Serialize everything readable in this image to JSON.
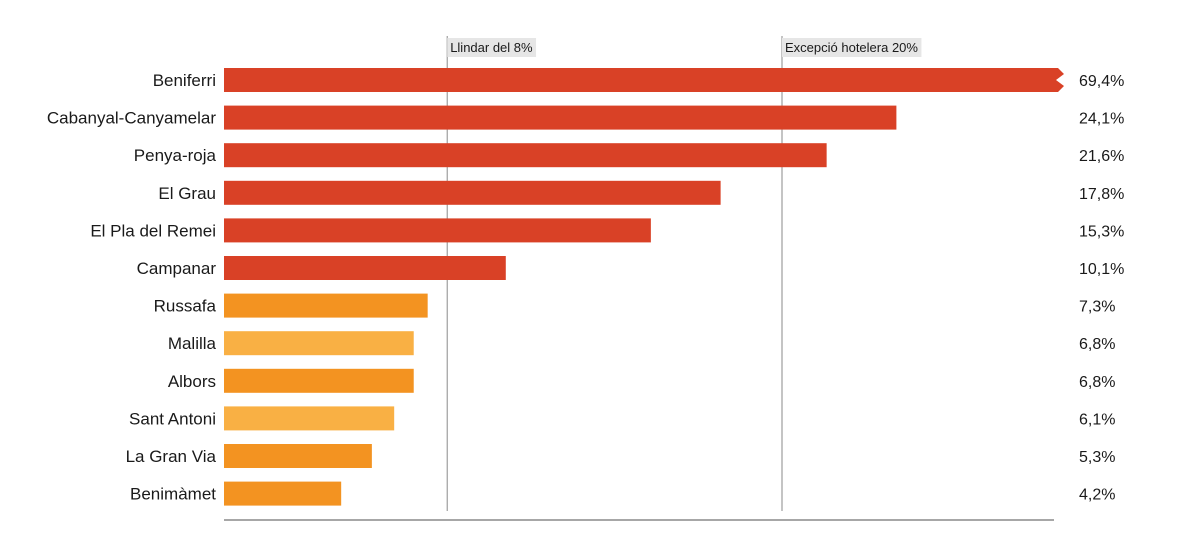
{
  "chart_data": {
    "type": "bar",
    "orientation": "horizontal",
    "categories": [
      "Beniferri",
      "Cabanyal-Canyamelar",
      "Penya-roja",
      "El Grau",
      "El Pla del Remei",
      "Campanar",
      "Russafa",
      "Malilla",
      "Albors",
      "Sant Antoni",
      "La Gran Via",
      "Benimàmet"
    ],
    "values": [
      69.4,
      24.1,
      21.6,
      17.8,
      15.3,
      10.1,
      7.3,
      6.8,
      6.8,
      6.1,
      5.3,
      4.2
    ],
    "value_labels": [
      "69,4%",
      "24,1%",
      "21,6%",
      "17,8%",
      "15,3%",
      "10,1%",
      "7,3%",
      "6,8%",
      "6,8%",
      "6,1%",
      "5,3%",
      "4,2%"
    ],
    "truncated_at": 30,
    "xlim": [
      0,
      30
    ],
    "reference_lines": [
      {
        "value": 8,
        "label": "Llindar del 8%"
      },
      {
        "value": 20,
        "label": "Excepció hotelera 20%"
      }
    ],
    "colors": {
      "above_threshold": "#d94126",
      "below_threshold_dark": "#f39321",
      "below_threshold_light": "#f9b044"
    },
    "bar_color_keys": [
      "above_threshold",
      "above_threshold",
      "above_threshold",
      "above_threshold",
      "above_threshold",
      "above_threshold",
      "below_threshold_dark",
      "below_threshold_light",
      "below_threshold_dark",
      "below_threshold_light",
      "below_threshold_dark",
      "below_threshold_dark"
    ],
    "grid": false,
    "legend": "none"
  }
}
